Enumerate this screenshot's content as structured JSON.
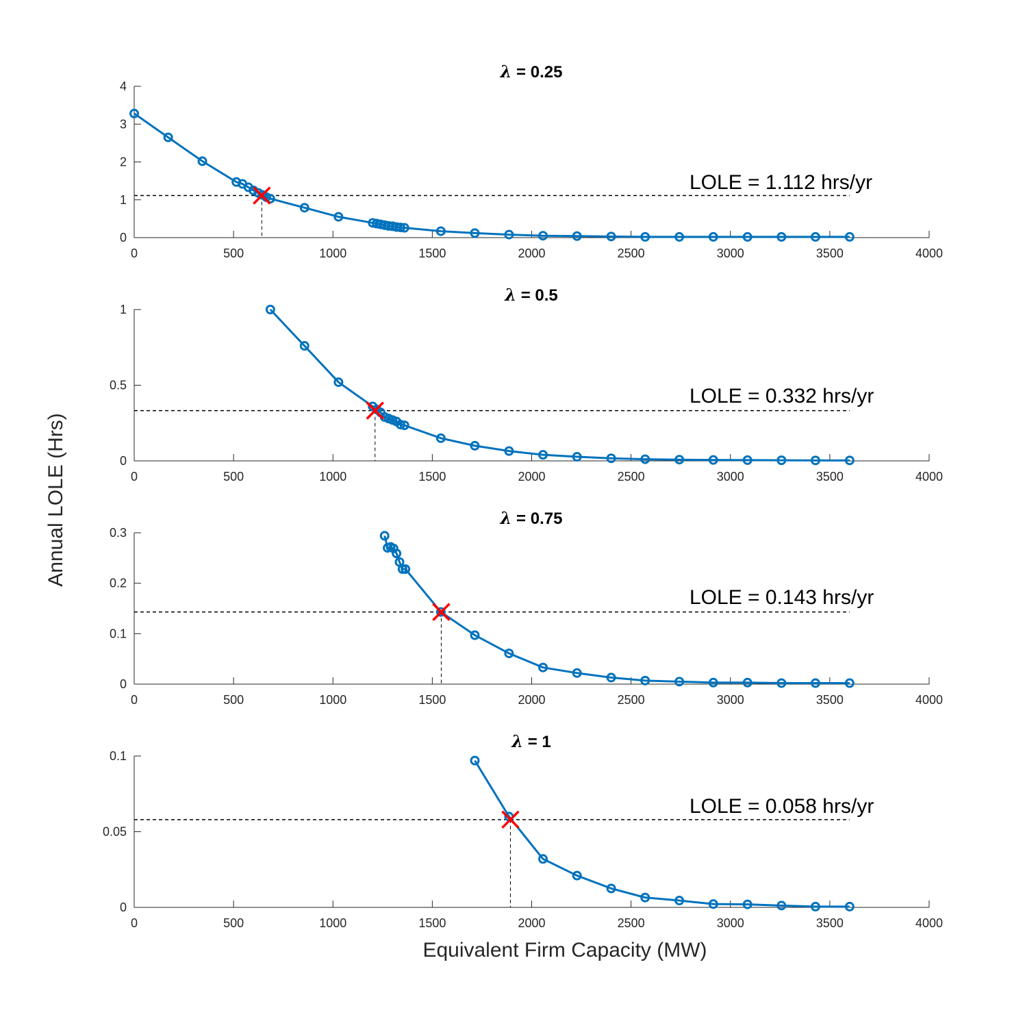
{
  "figure": {
    "ylabel": "Annual LOLE (Hrs)",
    "xlabel": "Equivalent Firm Capacity (MW)"
  },
  "chart_data": [
    {
      "type": "line",
      "title_symbol": "λ",
      "title_value": " = 0.25",
      "xlim": [
        0,
        4000
      ],
      "ylim": [
        0,
        4
      ],
      "xticks": [
        "0",
        "500",
        "1000",
        "1500",
        "2000",
        "2500",
        "3000",
        "3500",
        "4000"
      ],
      "yticks": [
        "0",
        "1",
        "2",
        "3",
        "4"
      ],
      "ytick_values": [
        0,
        1,
        2,
        3,
        4
      ],
      "series": [
        {
          "x": [
            0,
            171,
            343,
            514,
            545,
            575,
            600,
            625,
            645,
            665,
            685,
            857,
            1028,
            1200,
            1220,
            1240,
            1260,
            1280,
            1300,
            1320,
            1340,
            1360,
            1543,
            1714,
            1886,
            2057,
            2228,
            2400,
            2571,
            2743,
            2914,
            3086,
            3257,
            3428,
            3600
          ],
          "y": [
            3.28,
            2.65,
            2.02,
            1.47,
            1.42,
            1.33,
            1.25,
            1.18,
            1.13,
            1.07,
            1.03,
            0.79,
            0.55,
            0.39,
            0.37,
            0.35,
            0.33,
            0.31,
            0.3,
            0.28,
            0.27,
            0.26,
            0.17,
            0.12,
            0.08,
            0.05,
            0.04,
            0.03,
            0.02,
            0.02,
            0.02,
            0.02,
            0.02,
            0.02,
            0.02
          ]
        }
      ],
      "threshold": {
        "y": 1.112,
        "x": 642,
        "label": "LOLE = 1.112 hrs/yr"
      },
      "colors": {
        "line": "#0072BD",
        "marker_x": "#FF0000"
      }
    },
    {
      "type": "line",
      "title_symbol": "λ",
      "title_value": " = 0.5",
      "xlim": [
        0,
        4000
      ],
      "ylim": [
        0,
        1
      ],
      "xticks": [
        "0",
        "500",
        "1000",
        "1500",
        "2000",
        "2500",
        "3000",
        "3500",
        "4000"
      ],
      "yticks": [
        "0",
        "0.5",
        "1"
      ],
      "ytick_values": [
        0,
        0.5,
        1
      ],
      "series": [
        {
          "x": [
            685,
            857,
            1028,
            1200,
            1220,
            1240,
            1260,
            1280,
            1300,
            1320,
            1340,
            1360,
            1543,
            1714,
            1886,
            2057,
            2228,
            2400,
            2571,
            2743,
            2914,
            3086,
            3257,
            3428,
            3600
          ],
          "y": [
            1.0,
            0.76,
            0.52,
            0.36,
            0.34,
            0.32,
            0.29,
            0.28,
            0.27,
            0.26,
            0.24,
            0.235,
            0.15,
            0.1,
            0.065,
            0.04,
            0.027,
            0.017,
            0.011,
            0.008,
            0.006,
            0.005,
            0.004,
            0.003,
            0.003
          ]
        }
      ],
      "threshold": {
        "y": 0.332,
        "x": 1212,
        "label": "LOLE = 0.332 hrs/yr"
      },
      "colors": {
        "line": "#0072BD",
        "marker_x": "#FF0000"
      }
    },
    {
      "type": "line",
      "title_symbol": "λ",
      "title_value": " = 0.75",
      "xlim": [
        0,
        4000
      ],
      "ylim": [
        0,
        0.3
      ],
      "xticks": [
        "0",
        "500",
        "1000",
        "1500",
        "2000",
        "2500",
        "3000",
        "3500",
        "4000"
      ],
      "yticks": [
        "0",
        "0.1",
        "0.2",
        "0.3"
      ],
      "ytick_values": [
        0,
        0.1,
        0.2,
        0.3
      ],
      "series": [
        {
          "x": [
            1260,
            1275,
            1290,
            1305,
            1320,
            1335,
            1350,
            1365,
            1543,
            1714,
            1886,
            2057,
            2228,
            2400,
            2571,
            2743,
            2914,
            3086,
            3257,
            3428,
            3600
          ],
          "y": [
            0.294,
            0.27,
            0.272,
            0.269,
            0.259,
            0.242,
            0.228,
            0.228,
            0.143,
            0.097,
            0.061,
            0.033,
            0.022,
            0.013,
            0.007,
            0.005,
            0.003,
            0.003,
            0.002,
            0.002,
            0.002
          ]
        }
      ],
      "threshold": {
        "y": 0.143,
        "x": 1545,
        "label": "LOLE = 0.143 hrs/yr"
      },
      "colors": {
        "line": "#0072BD",
        "marker_x": "#FF0000"
      }
    },
    {
      "type": "line",
      "title_symbol": "λ",
      "title_value": " = 1",
      "xlim": [
        0,
        4000
      ],
      "ylim": [
        0,
        0.1
      ],
      "xticks": [
        "0",
        "500",
        "1000",
        "1500",
        "2000",
        "2500",
        "3000",
        "3500",
        "4000"
      ],
      "yticks": [
        "0",
        "0.05",
        "0.1"
      ],
      "ytick_values": [
        0,
        0.05,
        0.1
      ],
      "series": [
        {
          "x": [
            1714,
            1886,
            2057,
            2228,
            2400,
            2571,
            2743,
            2914,
            3086,
            3257,
            3428,
            3600
          ],
          "y": [
            0.097,
            0.06,
            0.032,
            0.021,
            0.0125,
            0.0065,
            0.0045,
            0.0022,
            0.002,
            0.0012,
            0.0005,
            0.0005
          ]
        }
      ],
      "threshold": {
        "y": 0.058,
        "x": 1893,
        "label": "LOLE = 0.058 hrs/yr"
      },
      "colors": {
        "line": "#0072BD",
        "marker_x": "#FF0000"
      }
    }
  ]
}
